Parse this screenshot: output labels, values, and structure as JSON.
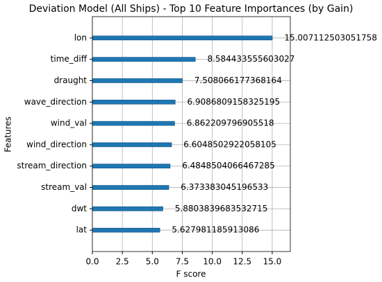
{
  "chart_data": {
    "type": "bar",
    "orientation": "horizontal",
    "title": "Deviation Model (All Ships) - Top 10 Feature Importances (by Gain)",
    "xlabel": "F score",
    "ylabel": "Features",
    "categories": [
      "lon",
      "time_diff",
      "draught",
      "wave_direction",
      "wind_val",
      "wind_direction",
      "stream_direction",
      "stream_val",
      "dwt",
      "lat"
    ],
    "values": [
      15.007112503051758,
      8.584433555603027,
      7.508066177368164,
      6.9086809158325195,
      6.862209796905518,
      6.6048502922058105,
      6.4848504066467285,
      6.373383045196533,
      5.8803839683532715,
      5.627981185913086
    ],
    "color": "#1f77b4",
    "xlim": [
      0,
      16.51
    ],
    "xticks": [
      {
        "value": 0,
        "label": "0.0"
      },
      2.5,
      {
        "value": 5,
        "label": "5.0"
      },
      7.5,
      {
        "value": 10,
        "label": "10.0"
      },
      12.5,
      {
        "value": 15,
        "label": "15.0"
      }
    ],
    "grid": true
  }
}
